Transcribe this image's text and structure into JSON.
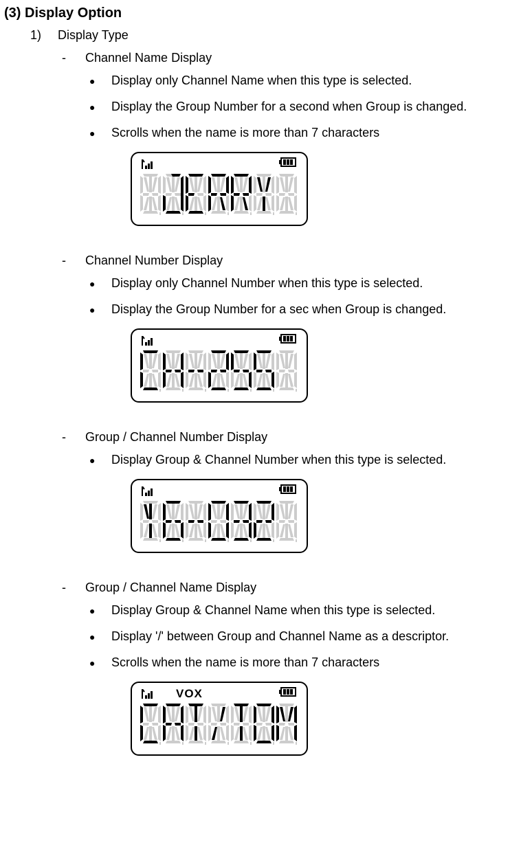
{
  "title": "(3) Display Option",
  "item1": {
    "num": "1)",
    "label": "Display Type"
  },
  "sections": [
    {
      "dash": "-",
      "title": "Channel Name Display",
      "bullets": [
        "Display only Channel Name when this type is selected.",
        "Display the Group Number for a second when Group is changed.",
        "Scrolls when the name is more than 7 characters"
      ],
      "lcd": {
        "showVox": false,
        "chars": [
          " ",
          "J",
          "E",
          "R",
          "R",
          "Y",
          " "
        ]
      }
    },
    {
      "dash": "-",
      "title": "Channel Number Display",
      "bullets": [
        "Display only Channel Number when this type is selected.",
        "Display the Group Number for a sec when Group is changed."
      ],
      "lcd": {
        "showVox": false,
        "chars": [
          " ",
          "C",
          "H",
          "-",
          "2",
          "5",
          "5",
          " "
        ]
      }
    },
    {
      "dash": "-",
      "title": "Group / Channel Number Display",
      "bullets": [
        "Display Group & Channel Number when this type is selected."
      ],
      "lcd": {
        "showVox": false,
        "chars": [
          " ",
          "1",
          "6",
          "-",
          "0",
          "3",
          "2",
          " "
        ]
      }
    },
    {
      "dash": "-",
      "title": "Group / Channel Name Display",
      "bullets": [
        "Display Group & Channel Name when this type is selected.",
        "Display '/' between Group and Channel Name as a descriptor.",
        "Scrolls when the name is more than 7 characters"
      ],
      "lcd": {
        "showVox": true,
        "voxLabel": "VOX",
        "chars": [
          " ",
          "C",
          "A",
          "T",
          "/",
          "T",
          "O",
          "M"
        ]
      }
    }
  ],
  "bulletSymbol": "●",
  "style": {
    "bodyFontSize": 18,
    "titleFontSize": 20,
    "inactiveSegColor": "#cccccc",
    "activeSegColor": "#000000",
    "lcdBorderColor": "#000000",
    "lcdBorderRadius": 12,
    "lcdWidth": 258,
    "lcdHeight": 108
  }
}
